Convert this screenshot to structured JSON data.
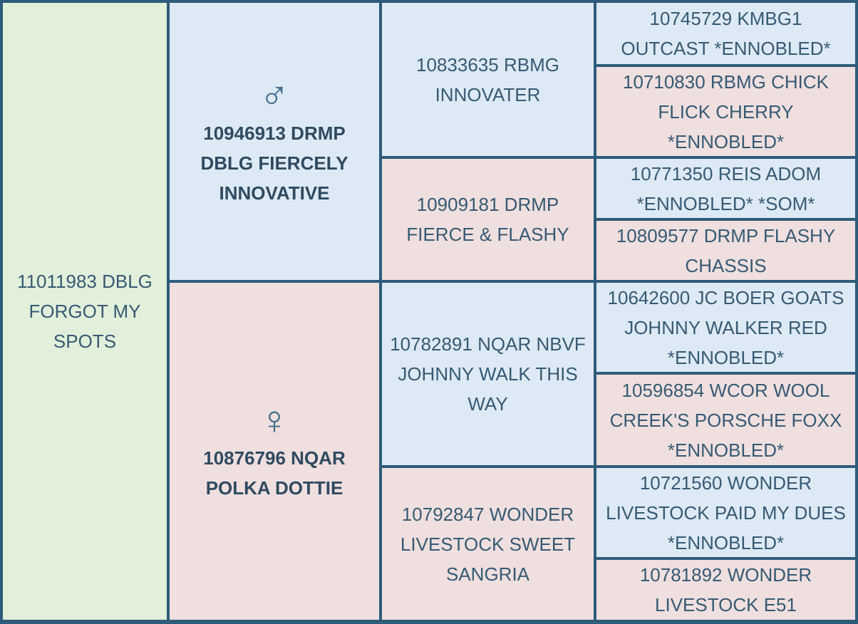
{
  "subject": {
    "name": "11011983 DBLG FORGOT MY SPOTS"
  },
  "sire": {
    "symbol": "♂",
    "name": "10946913 DRMP DBLG FIERCELY INNOVATIVE"
  },
  "dam": {
    "symbol": "♀",
    "name": "10876796 NQAR POLKA DOTTIE"
  },
  "grandparents": [
    {
      "name": "10833635 RBMG INNOVATER",
      "sex": "male"
    },
    {
      "name": "10909181 DRMP FIERCE & FLASHY",
      "sex": "female"
    },
    {
      "name": "10782891 NQAR NBVF JOHNNY WALK THIS WAY",
      "sex": "male"
    },
    {
      "name": "10792847 WONDER LIVESTOCK SWEET SANGRIA",
      "sex": "female"
    }
  ],
  "great_grandparents": [
    {
      "name": "10745729 KMBG1 OUTCAST *ENNOBLED*",
      "sex": "male"
    },
    {
      "name": "10710830 RBMG CHICK FLICK CHERRY *ENNOBLED*",
      "sex": "female"
    },
    {
      "name": "10771350 REIS ADOM *ENNOBLED* *SOM*",
      "sex": "male"
    },
    {
      "name": "10809577 DRMP FLASHY CHASSIS",
      "sex": "female"
    },
    {
      "name": "10642600 JC BOER GOATS JOHNNY WALKER RED *ENNOBLED*",
      "sex": "male"
    },
    {
      "name": "10596854 WCOR WOOL CREEK'S PORSCHE FOXX *ENNOBLED*",
      "sex": "female"
    },
    {
      "name": "10721560 WONDER LIVESTOCK PAID MY DUES *ENNOBLED*",
      "sex": "male"
    },
    {
      "name": "10781892 WONDER LIVESTOCK E51",
      "sex": "female"
    }
  ]
}
